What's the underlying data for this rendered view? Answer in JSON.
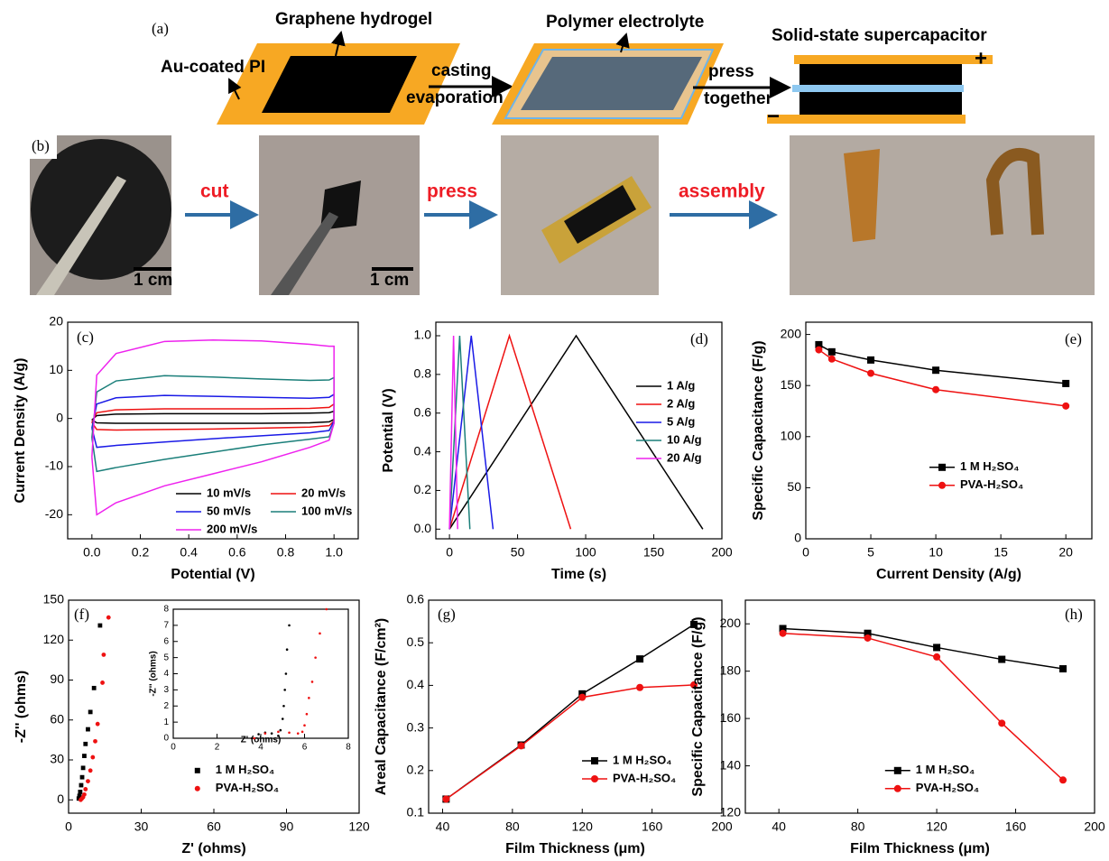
{
  "figure_a": {
    "label": "(a)",
    "graphene_hydrogel": "Graphene hydrogel",
    "au_coated_pi": "Au-coated PI",
    "casting": "casting",
    "evaporation": "evaporation",
    "polymer_electrolyte": "Polymer electrolyte",
    "press": "press",
    "together": "together",
    "solid_state_supercapacitor": "Solid-state supercapacitor",
    "plus": "+",
    "minus": "−"
  },
  "figure_b": {
    "label": "(b)",
    "steps": [
      "cut",
      "press",
      "assembly"
    ],
    "scale_bars": [
      "1 cm",
      "1 cm"
    ]
  },
  "chart_data": [
    {
      "type": "line",
      "panel_label": "(c)",
      "xlabel": "Potential (V)",
      "ylabel": "Current Density (A/g)",
      "x": [
        0,
        0.02,
        0.1,
        0.3,
        0.5,
        0.7,
        0.9,
        0.98,
        1,
        1,
        0.98,
        0.9,
        0.7,
        0.5,
        0.3,
        0.1,
        0.02,
        0
      ],
      "series": [
        {
          "name": "10 mV/s",
          "color": "#000000",
          "values": [
            -0.3,
            0.6,
            0.9,
            1.0,
            1.0,
            1.0,
            1.1,
            1.2,
            1.5,
            -0.2,
            -0.7,
            -0.9,
            -1.0,
            -1.0,
            -1.0,
            -1.0,
            -0.9,
            -0.3
          ]
        },
        {
          "name": "20 mV/s",
          "color": "#ee1111",
          "values": [
            -0.8,
            1.2,
            1.8,
            2.0,
            2.0,
            2.0,
            2.1,
            2.3,
            3.0,
            -0.5,
            -1.5,
            -1.8,
            -2.0,
            -2.2,
            -2.3,
            -2.4,
            -2.3,
            -0.8
          ]
        },
        {
          "name": "50 mV/s",
          "color": "#1a1ae6",
          "values": [
            -2,
            3.0,
            4.3,
            4.8,
            4.6,
            4.4,
            4.2,
            4.4,
            5.0,
            -0.5,
            -2.5,
            -3.0,
            -3.6,
            -4.2,
            -4.9,
            -5.6,
            -6.0,
            -2
          ]
        },
        {
          "name": "100 mV/s",
          "color": "#1b7f7a",
          "values": [
            -4,
            5.5,
            7.8,
            8.9,
            8.6,
            8.2,
            7.9,
            8.0,
            8.5,
            -1,
            -3.8,
            -4.3,
            -5.5,
            -7,
            -8.5,
            -10.2,
            -11.0,
            -4
          ]
        },
        {
          "name": "200 mV/s",
          "color": "#ee22ee",
          "values": [
            -8,
            9,
            13.5,
            16.0,
            16.3,
            16.1,
            15.4,
            15.0,
            15.0,
            -1,
            -4.5,
            -6,
            -9,
            -11.5,
            -14,
            -17.5,
            -20,
            -8
          ]
        }
      ],
      "xlim": [
        -0.1,
        1.1
      ],
      "xticks": [
        {
          "value": 0,
          "label": "0.0"
        },
        0.2,
        0.4,
        0.6,
        0.8,
        {
          "value": 1,
          "label": "1.0"
        }
      ],
      "ylim": [
        -25,
        20
      ],
      "yticks": [
        -20,
        -10,
        0,
        10,
        20
      ],
      "legend": "lower left"
    },
    {
      "type": "line",
      "panel_label": "(d)",
      "xlabel": "Time (s)",
      "ylabel": "Potential (V)",
      "series": [
        {
          "name": "1 A/g",
          "color": "#000000",
          "x": [
            0,
            93,
            186
          ],
          "values": [
            0,
            1,
            0
          ]
        },
        {
          "name": "2 A/g",
          "color": "#ee1111",
          "x": [
            0,
            44,
            89
          ],
          "values": [
            0,
            1,
            0
          ]
        },
        {
          "name": "5 A/g",
          "color": "#1a1ae6",
          "x": [
            0,
            16,
            32
          ],
          "values": [
            0,
            1,
            0
          ]
        },
        {
          "name": "10 A/g",
          "color": "#1b7f7a",
          "x": [
            0,
            7.5,
            15
          ],
          "values": [
            0,
            1,
            0
          ]
        },
        {
          "name": "20 A/g",
          "color": "#ee22ee",
          "x": [
            0,
            3,
            6
          ],
          "values": [
            0,
            1,
            0
          ]
        }
      ],
      "xlim": [
        -10,
        200
      ],
      "xticks": [
        0,
        50,
        100,
        150,
        200
      ],
      "ylim": [
        -0.05,
        1.07
      ],
      "yticks": [
        {
          "value": 0,
          "label": "0.0"
        },
        0.2,
        0.4,
        0.6,
        0.8,
        {
          "value": 1,
          "label": "1.0"
        }
      ],
      "legend": "upper right"
    },
    {
      "type": "line",
      "panel_label": "(e)",
      "xlabel": "Current Density (A/g)",
      "ylabel": "Specific Capacitance (F/g)",
      "x": [
        1,
        2,
        5,
        10,
        20
      ],
      "series": [
        {
          "name": "1 M H₂SO₄",
          "color": "#000000",
          "marker": "square",
          "values": [
            190,
            183,
            175,
            165,
            152
          ]
        },
        {
          "name": "PVA-H₂SO₄",
          "color": "#ee1111",
          "marker": "circle",
          "values": [
            185,
            176,
            162,
            146,
            130
          ]
        }
      ],
      "xlim": [
        0,
        22
      ],
      "xticks": [
        0,
        5,
        10,
        15,
        20
      ],
      "ylim": [
        0,
        212
      ],
      "yticks": [
        0,
        50,
        100,
        150,
        200
      ],
      "legend": "center right"
    },
    {
      "type": "scatter",
      "panel_label": "(f)",
      "xlabel": "Z' (ohms)",
      "ylabel": "-Z'' (ohms)",
      "series": [
        {
          "name": "1 M H₂SO₄",
          "color": "#000000",
          "marker": "square",
          "x": [
            4.2,
            4.5,
            4.8,
            5.2,
            5.6,
            6,
            6.5,
            7,
            8,
            9,
            10.5,
            13
          ],
          "values": [
            1,
            3,
            6,
            11,
            17,
            24,
            33,
            42,
            53,
            66,
            84,
            131
          ]
        },
        {
          "name": "PVA-H₂SO₄",
          "color": "#ee1111",
          "marker": "circle",
          "x": [
            5,
            5.5,
            6,
            6.5,
            7,
            8,
            9,
            10,
            11,
            12,
            14,
            14.5,
            16.5
          ],
          "values": [
            0,
            1,
            2,
            4,
            8,
            14,
            22,
            32,
            44,
            57,
            88,
            109,
            137
          ]
        }
      ],
      "xlim": [
        0,
        120
      ],
      "xticks": [
        0,
        30,
        60,
        90,
        120
      ],
      "ylim": [
        -10,
        150
      ],
      "yticks": [
        0,
        30,
        60,
        90,
        120,
        150
      ],
      "legend": "lower center"
    },
    {
      "type": "scatter",
      "xlabel": "Z' (ohms)",
      "ylabel": "-Z'' (ohms)",
      "series": [
        {
          "color": "#000000",
          "x": [
            3.6,
            3.9,
            4.2,
            4.5,
            4.8,
            4.9,
            5.0,
            5.05,
            5.1,
            5.15,
            5.2,
            5.3
          ],
          "values": [
            0,
            0.25,
            0.35,
            0.3,
            0.15,
            0.5,
            1.2,
            2.0,
            3.0,
            4.0,
            5.5,
            7.0
          ]
        },
        {
          "color": "#ee1111",
          "x": [
            3.7,
            4.2,
            4.8,
            5.3,
            5.7,
            5.9,
            6.0,
            6.1,
            6.2,
            6.35,
            6.5,
            6.7,
            7.0
          ],
          "values": [
            0,
            0.3,
            0.4,
            0.35,
            0.3,
            0.4,
            0.8,
            1.5,
            2.5,
            3.5,
            5.0,
            6.5,
            8.0
          ]
        }
      ],
      "xlim": [
        0,
        8
      ],
      "xticks": [
        0,
        2,
        4,
        6,
        8
      ],
      "ylim": [
        0,
        8
      ],
      "yticks": [
        0,
        1,
        2,
        3,
        4,
        5,
        6,
        7,
        8
      ]
    },
    {
      "type": "line",
      "panel_label": "(g)",
      "xlabel": "Film Thickness (μm)",
      "ylabel": "Areal Capacitance (F/cm²)",
      "x": [
        42,
        85,
        120,
        153,
        184
      ],
      "series": [
        {
          "name": "1 M H₂SO₄",
          "color": "#000000",
          "marker": "square",
          "values": [
            0.133,
            0.26,
            0.38,
            0.462,
            0.543
          ]
        },
        {
          "name": "PVA-H₂SO₄",
          "color": "#ee1111",
          "marker": "circle",
          "values": [
            0.133,
            0.258,
            0.372,
            0.395,
            0.401
          ]
        }
      ],
      "xlim": [
        32,
        200
      ],
      "xticks": [
        40,
        80,
        120,
        160,
        200
      ],
      "ylim": [
        0.1,
        0.6
      ],
      "yticks": [
        0.1,
        0.2,
        0.3,
        0.4,
        0.5,
        0.6
      ],
      "legend": "lower right"
    },
    {
      "type": "line",
      "panel_label": "(h)",
      "xlabel": "Film Thickness (μm)",
      "ylabel": "Specific Capacitance (F/g)",
      "x": [
        42,
        85,
        120,
        153,
        184
      ],
      "series": [
        {
          "name": "1 M H₂SO₄",
          "color": "#000000",
          "marker": "square",
          "values": [
            198,
            196,
            190,
            185,
            181
          ]
        },
        {
          "name": "PVA-H₂SO₄",
          "color": "#ee1111",
          "marker": "circle",
          "values": [
            196,
            194,
            186,
            158,
            134
          ]
        }
      ],
      "xlim": [
        23,
        200
      ],
      "xticks": [
        40,
        80,
        120,
        160,
        200
      ],
      "ylim": [
        120,
        210
      ],
      "yticks": [
        120,
        140,
        160,
        180,
        200
      ],
      "legend": "lower center"
    }
  ]
}
